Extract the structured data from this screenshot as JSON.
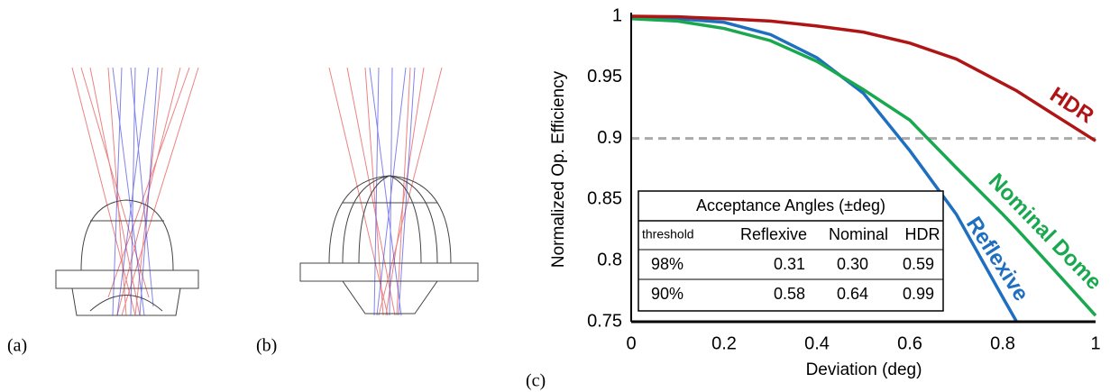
{
  "panel_labels": [
    "(a)",
    "(b)",
    "(c)"
  ],
  "chart_data": {
    "type": "line",
    "xlabel": "Deviation (deg)",
    "ylabel": "Normalized Op. Efficiency",
    "x": [
      0,
      0.1,
      0.2,
      0.3,
      0.4,
      0.5,
      0.6,
      0.7,
      0.8,
      0.83,
      0.9,
      1.0
    ],
    "series": [
      {
        "name": "Reflexive",
        "color": "#1f6fc0",
        "values": [
          0.999,
          0.998,
          0.995,
          0.985,
          0.966,
          0.937,
          0.89,
          0.838,
          0.77,
          0.75,
          null,
          null
        ]
      },
      {
        "name": "Nominal Dome",
        "color": "#1aa84f",
        "values": [
          0.998,
          0.996,
          0.99,
          0.98,
          0.963,
          0.94,
          0.915,
          0.876,
          0.838,
          0.826,
          0.797,
          0.755
        ]
      },
      {
        "name": "HDR",
        "color": "#b01515",
        "values": [
          1.0,
          0.9995,
          0.998,
          0.996,
          0.992,
          0.987,
          0.978,
          0.965,
          0.945,
          0.939,
          0.922,
          0.898
        ]
      }
    ],
    "reference_line": {
      "value": 0.9,
      "color": "#aaaaaa"
    },
    "xlim": [
      0,
      1
    ],
    "xticks": [
      0,
      0.2,
      0.4,
      0.6,
      0.8,
      1
    ],
    "ylim": [
      0.75,
      1
    ],
    "yticks": [
      0.75,
      0.8,
      0.85,
      0.9,
      0.95,
      1
    ],
    "table": {
      "title": "Acceptance Angles (±deg)",
      "header": [
        "threshold",
        "Reflexive",
        "Nominal",
        "HDR"
      ],
      "rows": [
        [
          "98%",
          "0.31",
          "0.30",
          "0.59"
        ],
        [
          "90%",
          "0.58",
          "0.64",
          "0.99"
        ]
      ]
    }
  }
}
